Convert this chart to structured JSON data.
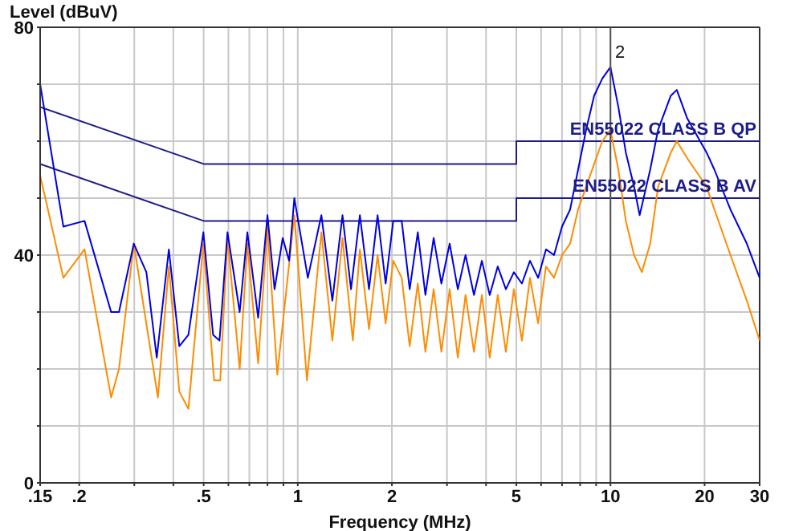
{
  "chart_data": {
    "type": "line",
    "xlabel": "Frequency (MHz)",
    "ylabel": "Level (dBuV)",
    "log": "x",
    "grid": true,
    "marker": "none",
    "xlim": [
      0.15,
      30
    ],
    "xticks": [
      {
        "value": 0.15,
        "label": ".15"
      },
      {
        "value": 0.2,
        "label": ".2"
      },
      {
        "value": 0.3,
        "label": null
      },
      {
        "value": 0.4,
        "label": null
      },
      {
        "value": 0.5,
        "label": ".5"
      },
      {
        "value": 0.6,
        "label": null
      },
      {
        "value": 0.7,
        "label": null
      },
      {
        "value": 0.8,
        "label": null
      },
      {
        "value": 0.9,
        "label": null
      },
      1,
      2,
      {
        "value": 3,
        "label": null
      },
      {
        "value": 4,
        "label": null
      },
      5,
      {
        "value": 6,
        "label": null
      },
      {
        "value": 7,
        "label": null
      },
      {
        "value": 8,
        "label": null
      },
      {
        "value": 9,
        "label": null
      },
      10,
      20,
      30
    ],
    "ylim": [
      0,
      80
    ],
    "yticks": [
      0,
      {
        "value": 10,
        "label": null
      },
      {
        "value": 20,
        "label": null
      },
      {
        "value": 30,
        "label": null
      },
      40,
      {
        "value": 50,
        "label": null
      },
      {
        "value": 60,
        "label": null
      },
      {
        "value": 70,
        "label": null
      },
      80
    ],
    "ref_lines": [
      {
        "axis": "x",
        "value": 10,
        "color": "#555555"
      }
    ],
    "annotations": [
      {
        "text": "2",
        "x": 10,
        "y": 73
      }
    ],
    "series": [
      {
        "name": "EN55022 CLASS B QP",
        "color": "#1c1c8a",
        "x": [
          0.15,
          0.5,
          5,
          5,
          30
        ],
        "values": [
          66,
          56,
          56,
          60,
          60
        ]
      },
      {
        "name": "EN55022 CLASS B AV",
        "color": "#1c1c8a",
        "x": [
          0.15,
          0.5,
          5,
          5,
          30
        ],
        "values": [
          56,
          46,
          46,
          50,
          50
        ]
      },
      {
        "color": "#ff8c00",
        "x": [
          0.15,
          0.178,
          0.208,
          0.253,
          0.268,
          0.299,
          0.357,
          0.387,
          0.418,
          0.447,
          0.499,
          0.54,
          0.565,
          0.596,
          0.652,
          0.69,
          0.747,
          0.8,
          0.86,
          0.975,
          1.07,
          1.19,
          1.29,
          1.39,
          1.5,
          1.58,
          1.69,
          1.8,
          1.91,
          2.02,
          2.15,
          2.28,
          2.42,
          2.56,
          2.72,
          2.88,
          3.06,
          3.25,
          3.44,
          3.66,
          3.88,
          4.11,
          4.36,
          4.63,
          4.91,
          5.21,
          5.53,
          5.87,
          6.22,
          6.6,
          7.0,
          7.43,
          7.88,
          8.36,
          8.87,
          9.42,
          10,
          10.6,
          11.2,
          11.9,
          12.6,
          13.4,
          14.2,
          15.6,
          16.3,
          17.6,
          20.3,
          21.5,
          24.2,
          27.3,
          30
        ],
        "values": [
          54,
          36,
          41,
          15,
          20,
          42,
          15,
          38,
          16,
          13,
          42,
          18,
          18,
          43,
          20,
          42,
          21,
          45,
          19,
          47,
          18,
          44,
          25,
          43,
          25,
          41,
          27,
          40,
          28,
          39,
          36,
          24,
          35,
          23,
          34,
          23,
          34,
          22,
          33,
          23,
          33,
          22,
          33,
          23,
          34,
          25,
          36,
          28,
          38,
          36,
          40,
          42,
          48,
          52,
          56,
          60,
          62,
          55,
          46,
          40,
          37,
          42,
          52,
          58,
          60,
          57,
          52,
          48,
          40,
          32,
          25
        ]
      },
      {
        "color": "#0000e0",
        "x": [
          0.15,
          0.178,
          0.208,
          0.253,
          0.268,
          0.299,
          0.328,
          0.354,
          0.387,
          0.418,
          0.447,
          0.499,
          0.536,
          0.562,
          0.596,
          0.652,
          0.69,
          0.747,
          0.8,
          0.843,
          0.895,
          0.938,
          0.975,
          1.077,
          1.19,
          1.29,
          1.39,
          1.48,
          1.58,
          1.69,
          1.8,
          1.91,
          2.02,
          2.15,
          2.28,
          2.42,
          2.56,
          2.72,
          2.88,
          3.06,
          3.25,
          3.44,
          3.66,
          3.88,
          4.11,
          4.36,
          4.63,
          4.91,
          5.21,
          5.53,
          5.87,
          6.22,
          6.6,
          7.0,
          7.43,
          7.88,
          8.36,
          8.87,
          9.42,
          10,
          10.6,
          11.2,
          11.9,
          12.4,
          13.4,
          14.2,
          15.6,
          16.3,
          17.6,
          20.3,
          21.5,
          24.2,
          27.3,
          30
        ],
        "values": [
          70,
          45,
          46,
          30,
          30,
          42,
          37,
          22,
          41,
          24,
          26,
          44,
          26,
          25,
          44,
          30,
          44,
          29,
          47,
          34,
          43,
          39,
          50,
          36,
          47,
          32,
          47,
          34,
          47,
          34,
          47,
          35,
          46,
          46,
          34,
          44,
          33,
          43,
          35,
          42,
          34,
          40,
          33,
          39,
          33,
          38,
          34,
          37,
          35,
          39,
          36,
          41,
          40,
          45,
          48,
          55,
          62,
          68,
          71,
          73,
          66,
          58,
          52,
          47,
          55,
          62,
          68,
          69,
          64,
          58,
          55,
          48,
          42,
          36
        ]
      }
    ]
  }
}
